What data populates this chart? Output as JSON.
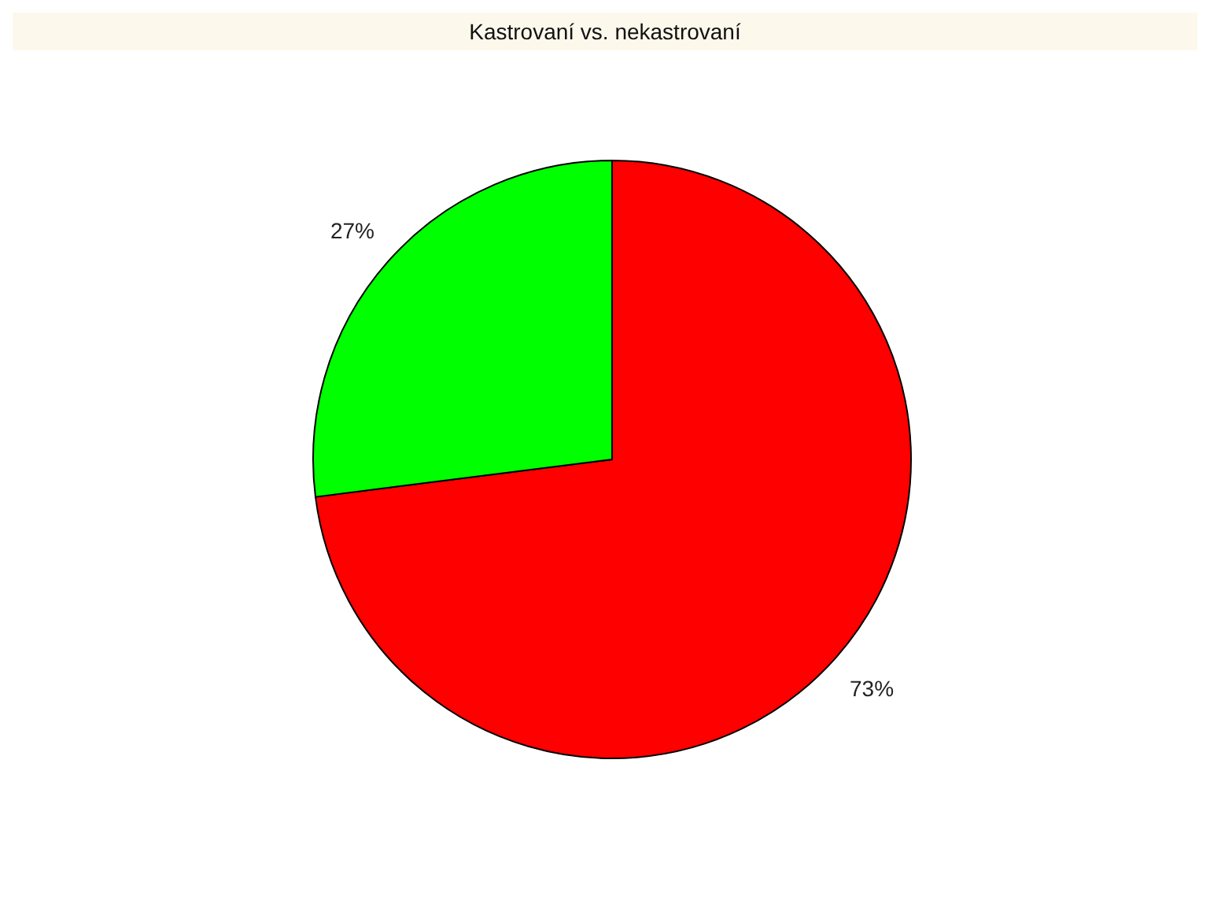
{
  "chart_data": {
    "type": "pie",
    "title": "Kastrovaní vs. nekastrovaní",
    "categories": [
      null,
      null
    ],
    "values": [
      73,
      27
    ],
    "colors": [
      "#ff0000",
      "#00ff00"
    ],
    "value_labels": [
      "73%",
      "27%"
    ],
    "legend": false
  }
}
